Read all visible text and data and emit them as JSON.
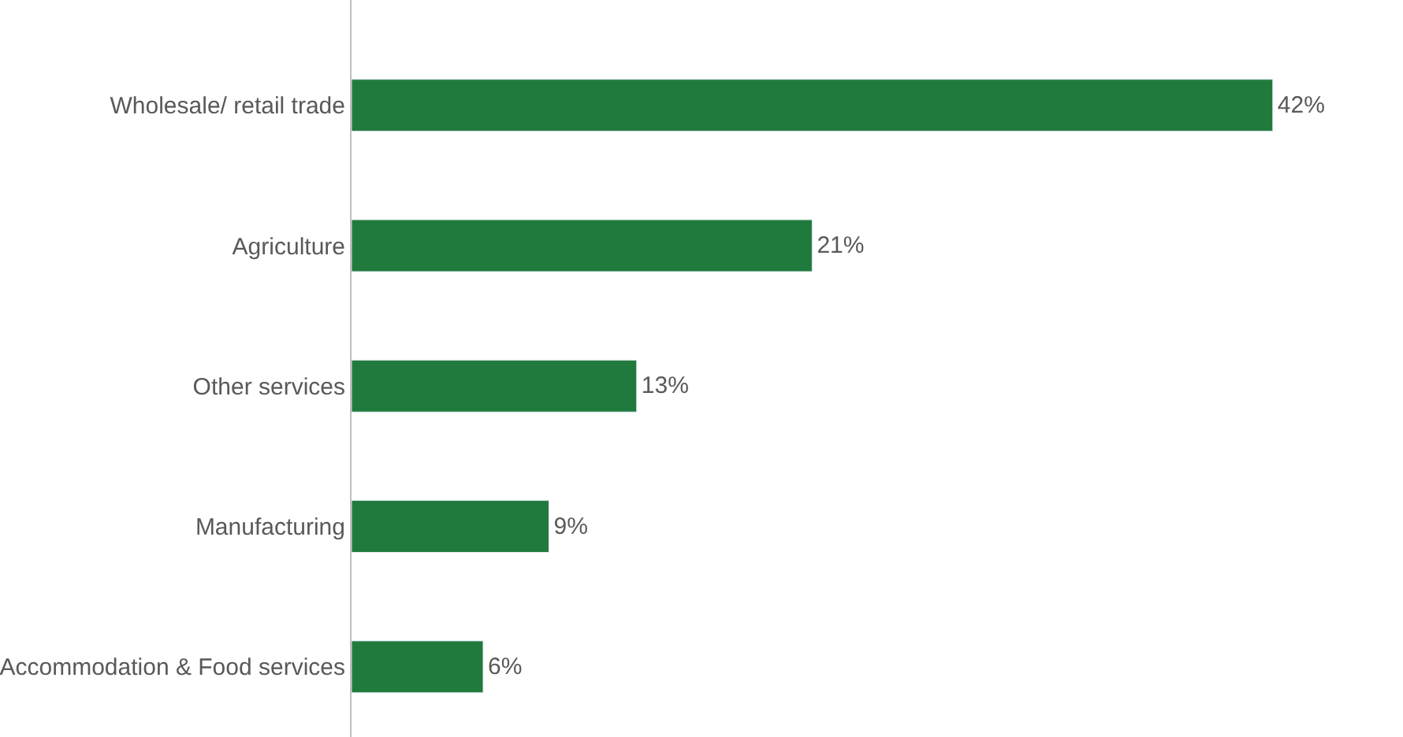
{
  "chart_data": {
    "type": "bar",
    "orientation": "horizontal",
    "categories": [
      "Wholesale/ retail trade",
      "Agriculture",
      "Other services",
      "Manufacturing",
      "Accommodation & Food services"
    ],
    "values": [
      42,
      21,
      13,
      9,
      6
    ],
    "value_labels": [
      "42%",
      "21%",
      "13%",
      "9%",
      "6%"
    ],
    "color": "#217a3d"
  }
}
